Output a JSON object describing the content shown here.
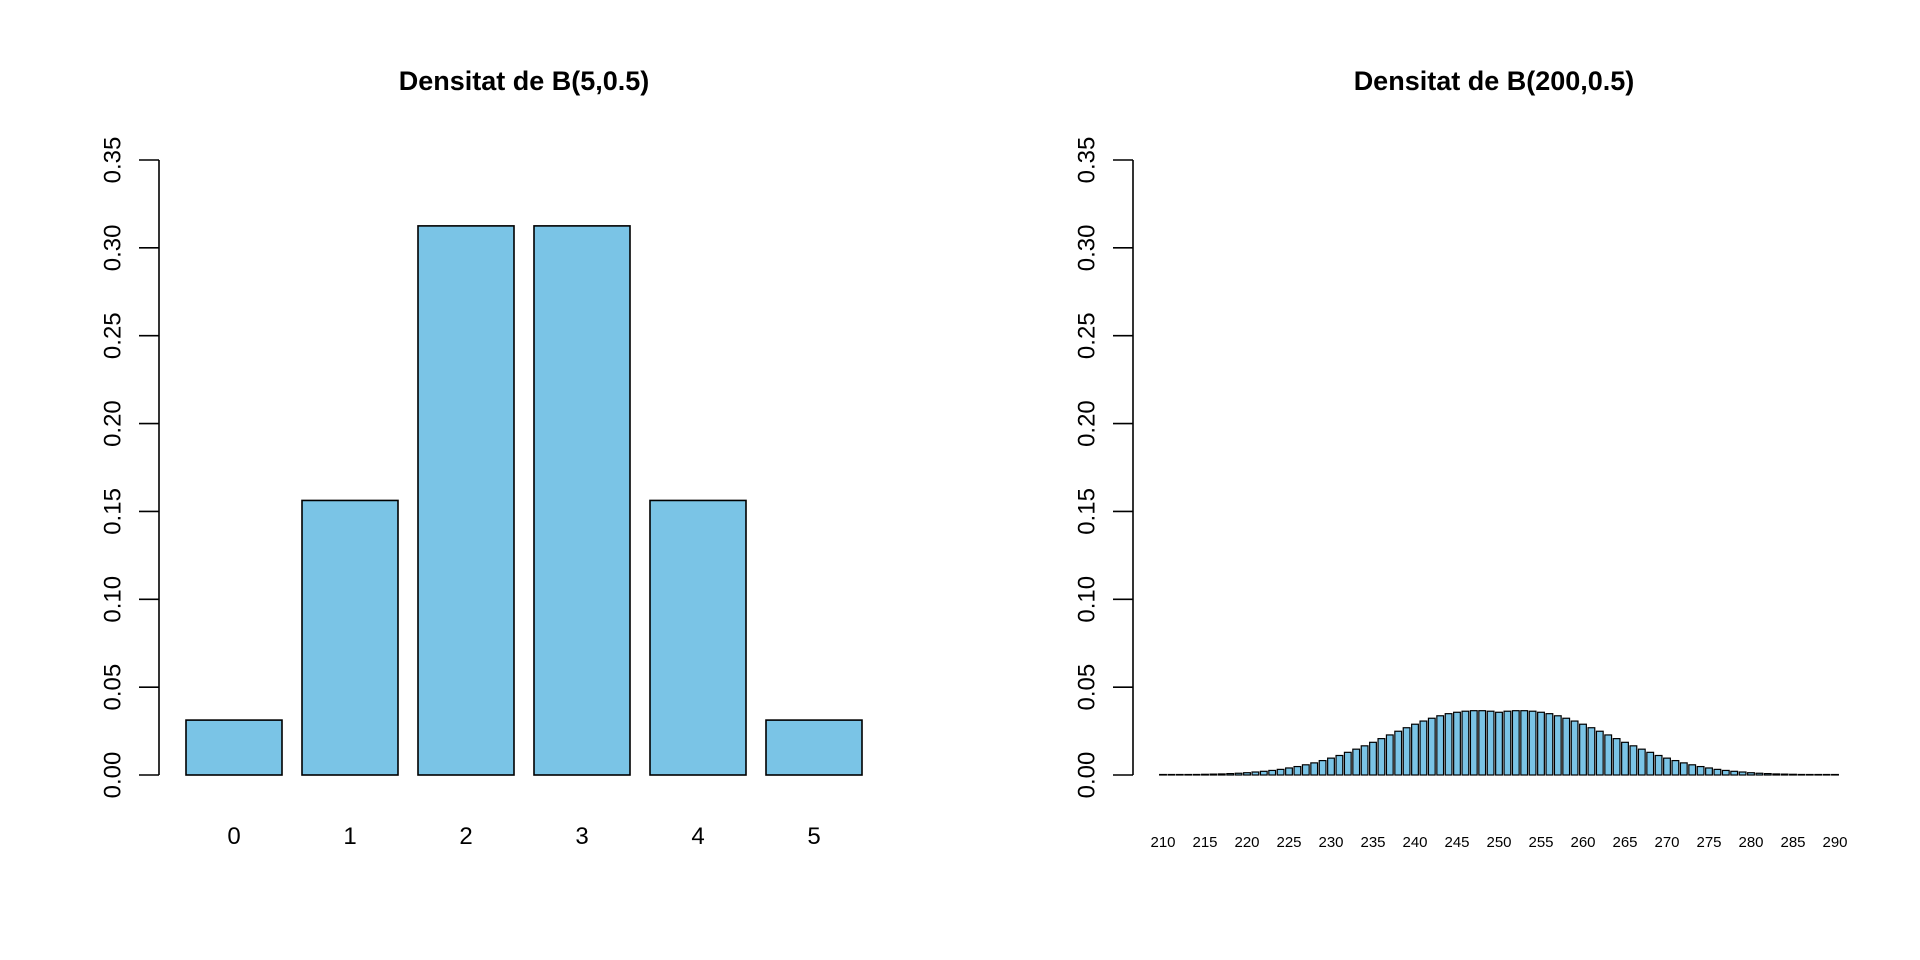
{
  "chart_data": [
    {
      "type": "bar",
      "title": "Densitat de B(5,0.5)",
      "xlabel": "",
      "ylabel": "",
      "ylim": [
        0,
        0.35
      ],
      "yticks": [
        "0.00",
        "0.05",
        "0.10",
        "0.15",
        "0.20",
        "0.25",
        "0.30",
        "0.35"
      ],
      "bar_color": "#7AC4E6",
      "categories": [
        "0",
        "1",
        "2",
        "3",
        "4",
        "5"
      ],
      "values": [
        0.03125,
        0.15625,
        0.3125,
        0.3125,
        0.15625,
        0.03125
      ]
    },
    {
      "type": "bar",
      "title": "Densitat de B(200,0.5)",
      "xlabel": "",
      "ylabel": "",
      "ylim": [
        0,
        0.35
      ],
      "yticks": [
        "0.00",
        "0.05",
        "0.10",
        "0.15",
        "0.20",
        "0.25",
        "0.30",
        "0.35"
      ],
      "bar_color": "#7AC4E6",
      "x_range": [
        210,
        290
      ],
      "xtick_labels": [
        "210",
        "215",
        "220",
        "225",
        "230",
        "235",
        "240",
        "245",
        "250",
        "255",
        "260",
        "265",
        "270",
        "275",
        "280",
        "285",
        "290"
      ],
      "x_values": [
        210,
        211,
        212,
        213,
        214,
        215,
        216,
        217,
        218,
        219,
        220,
        221,
        222,
        223,
        224,
        225,
        226,
        227,
        228,
        229,
        230,
        231,
        232,
        233,
        234,
        235,
        236,
        237,
        238,
        239,
        240,
        241,
        242,
        243,
        244,
        245,
        246,
        247,
        248,
        249,
        250,
        251,
        252,
        253,
        254,
        255,
        256,
        257,
        258,
        259,
        260,
        261,
        262,
        263,
        264,
        265,
        266,
        267,
        268,
        269,
        270,
        271,
        272,
        273,
        274,
        275,
        276,
        277,
        278,
        279,
        280,
        281,
        282,
        283,
        284,
        285,
        286,
        287,
        288,
        289,
        290
      ],
      "values": [
        0.0,
        0.0001,
        0.0001,
        0.0002,
        0.0003,
        0.0004,
        0.0005,
        0.0006,
        0.0008,
        0.001,
        0.0013,
        0.0017,
        0.0021,
        0.0026,
        0.0032,
        0.004,
        0.0048,
        0.0058,
        0.0069,
        0.0082,
        0.0096,
        0.0111,
        0.0129,
        0.0147,
        0.0166,
        0.0186,
        0.0207,
        0.0228,
        0.0249,
        0.0269,
        0.0289,
        0.0307,
        0.0323,
        0.0337,
        0.0349,
        0.0357,
        0.0363,
        0.0366,
        0.0366,
        0.0363,
        0.0357,
        0.0363,
        0.0366,
        0.0366,
        0.0363,
        0.0357,
        0.0349,
        0.0337,
        0.0323,
        0.0307,
        0.0289,
        0.0269,
        0.0249,
        0.0228,
        0.0207,
        0.0186,
        0.0166,
        0.0147,
        0.0129,
        0.0111,
        0.0096,
        0.0082,
        0.0069,
        0.0058,
        0.0048,
        0.004,
        0.0032,
        0.0026,
        0.0021,
        0.0017,
        0.0013,
        0.001,
        0.0008,
        0.0006,
        0.0005,
        0.0004,
        0.0003,
        0.0002,
        0.0001,
        0.0001,
        0.0
      ]
    }
  ]
}
